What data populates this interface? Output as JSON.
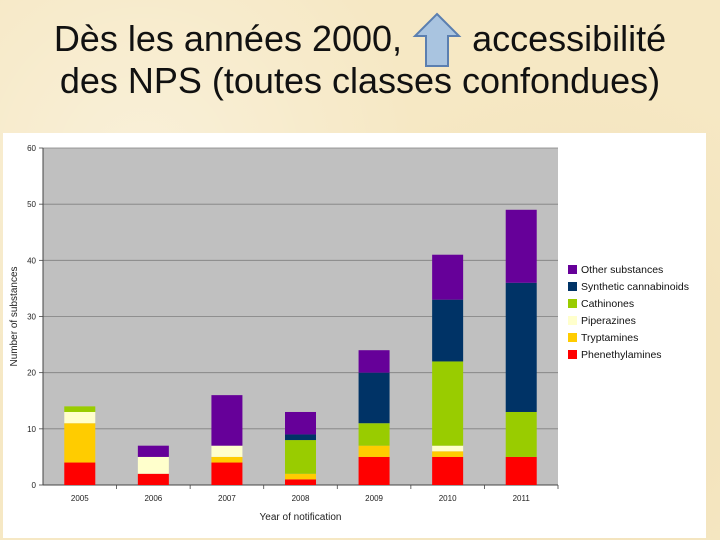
{
  "slide": {
    "title_line1_before": "Dès les années 2000,",
    "title_line1_after": "accessibilité",
    "title_line2": "des NPS (toutes classes confondues)",
    "arrow_icon": "up-arrow-icon",
    "arrow_fill": "#a9c4e0",
    "arrow_stroke": "#5b7fb0"
  },
  "chart_data": {
    "type": "bar",
    "stacked": true,
    "xlabel": "Year of notification",
    "ylabel": "Number of substances",
    "ylim": [
      0,
      60
    ],
    "yticks": [
      0,
      10,
      20,
      30,
      40,
      50,
      60
    ],
    "grid": true,
    "legend_position": "right",
    "categories": [
      "2005",
      "2006",
      "2007",
      "2008",
      "2009",
      "2010",
      "2011"
    ],
    "series": [
      {
        "name": "Phenethylamines",
        "color": "#ff0000",
        "values": [
          4,
          2,
          4,
          1,
          5,
          5,
          5
        ]
      },
      {
        "name": "Tryptamines",
        "color": "#ffcc00",
        "values": [
          7,
          0,
          1,
          1,
          2,
          1,
          0
        ]
      },
      {
        "name": "Piperazines",
        "color": "#ffffcc",
        "values": [
          2,
          3,
          2,
          0,
          0,
          1,
          0
        ]
      },
      {
        "name": "Cathinones",
        "color": "#99cc00",
        "values": [
          1,
          0,
          0,
          6,
          4,
          15,
          8
        ]
      },
      {
        "name": "Synthetic cannabinoids",
        "color": "#003366",
        "values": [
          0,
          0,
          0,
          1,
          9,
          11,
          23
        ]
      },
      {
        "name": "Other substances",
        "color": "#660099",
        "values": [
          0,
          2,
          9,
          4,
          4,
          8,
          13
        ]
      }
    ]
  }
}
